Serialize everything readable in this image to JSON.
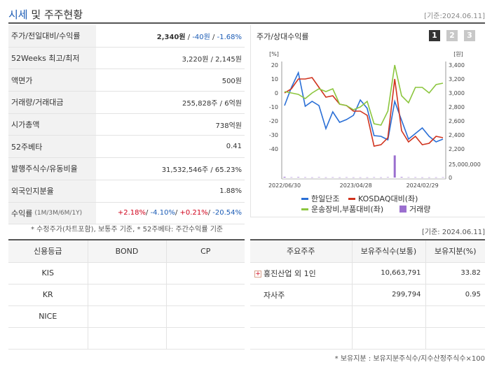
{
  "header": {
    "title_part1": "시세",
    "title_part2": " 및 주주현황",
    "date": "[기준:2024.06.11]"
  },
  "stock_info": {
    "price_row": {
      "label": "주가/전일대비/수익률",
      "price": "2,340원",
      "sep1": " / ",
      "change": "-40원",
      "sep2": " / ",
      "rate": "-1.68%"
    },
    "weeks52": {
      "label": "52Weeks 최고/최저",
      "value": "3,220원 / 2,145원"
    },
    "par": {
      "label": "액면가",
      "value": "500원"
    },
    "volume": {
      "label": "거래량/거래대금",
      "value": "255,828주 / 6억원"
    },
    "mcap": {
      "label": "시가총액",
      "value": "738억원"
    },
    "beta": {
      "label": "52주베타",
      "value": "0.41"
    },
    "shares": {
      "label": "발행주식수/유동비율",
      "value": "31,532,546주 / 65.23%"
    },
    "foreign": {
      "label": "외국인지분율",
      "value": "1.88%"
    },
    "returns": {
      "label": "수익률",
      "sub": "(1M/3M/6M/1Y)",
      "r1": "+2.18%",
      "r2": "-4.10%",
      "r3": "+0.21%",
      "r4": "-20.54%",
      "sep": "/ "
    }
  },
  "left_note": "* 수정주가(차트포함), 보통주 기준, * 52주베타: 주간수익률 기준",
  "chart": {
    "title": "주가/상대수익률",
    "pages": [
      "1",
      "2",
      "3"
    ],
    "legend": [
      {
        "name": "한일단조",
        "color": "#2a6fd6"
      },
      {
        "name": "KOSDAQ대비(좌)",
        "color": "#d0331e"
      },
      {
        "name": "운송장비,부품대비(좌)",
        "color": "#8cc63f"
      },
      {
        "name": "거래량",
        "color": "#9b6fcf"
      }
    ]
  },
  "chart_data": {
    "type": "line",
    "left_axis_unit": "[%]",
    "right_axis_unit": "[원]",
    "left_ticks": [
      "20",
      "10",
      "0",
      "-10",
      "-20",
      "-30",
      "-40"
    ],
    "right_ticks": [
      "3,400",
      "3,200",
      "3,000",
      "2,800",
      "2,600",
      "2,400",
      "2,200"
    ],
    "volume_ticks": [
      "25,000,000",
      "0"
    ],
    "x_labels": [
      "2022/06/30",
      "2023/04/28",
      "2024/02/29"
    ],
    "ylim_left": [
      -40,
      20
    ],
    "ylim_right": [
      2200,
      3400
    ],
    "volume_max": 25000000,
    "series": [
      {
        "name": "한일단조",
        "axis": "right",
        "values": [
          2820,
          3080,
          3290,
          2810,
          2880,
          2820,
          2490,
          2730,
          2580,
          2620,
          2680,
          2900,
          2780,
          2390,
          2380,
          2330,
          2880,
          2610,
          2340,
          2420,
          2500,
          2380,
          2300,
          2340
        ]
      },
      {
        "name": "KOSDAQ대비(좌)",
        "axis": "left",
        "values": [
          0,
          3,
          10,
          10,
          11,
          4,
          -3,
          -2,
          -8,
          -9,
          -13,
          -13,
          -16,
          -38,
          -37,
          -32,
          10,
          -27,
          -35,
          -31,
          -37,
          -36,
          -31,
          -32
        ]
      },
      {
        "name": "운송장비,부품대비(좌)",
        "axis": "left",
        "values": [
          1,
          0,
          -1,
          -4,
          0,
          3,
          1,
          3,
          -8,
          -9,
          -12,
          -10,
          -6,
          -22,
          -23,
          -13,
          20,
          -2,
          -7,
          4,
          4,
          0,
          6,
          7
        ]
      }
    ],
    "volume": [
      800000,
      300000,
      500000,
      300000,
      200000,
      400000,
      200000,
      300000,
      200000,
      300000,
      200000,
      200000,
      200000,
      300000,
      200000,
      400000,
      24000000,
      600000,
      300000,
      300000,
      200000,
      200000,
      200000,
      300000
    ]
  },
  "right_date": "[기준: 2024.06.11]",
  "credit": {
    "headers": [
      "신용등급",
      "BOND",
      "CP"
    ],
    "rows": [
      [
        "KIS",
        "",
        ""
      ],
      [
        "KR",
        "",
        ""
      ],
      [
        "NICE",
        "",
        ""
      ],
      [
        "",
        "",
        ""
      ]
    ]
  },
  "holders": {
    "headers": [
      "주요주주",
      "보유주식수(보통)",
      "보유지분(%)"
    ],
    "rows": [
      {
        "name": "홍진산업 외 1인",
        "shares": "10,663,791",
        "pct": "33.82",
        "expand": "+"
      },
      {
        "name": "자사주",
        "shares": "299,794",
        "pct": "0.95"
      },
      {
        "name": "",
        "shares": "",
        "pct": ""
      },
      {
        "name": "",
        "shares": "",
        "pct": ""
      }
    ]
  },
  "bottom_note": "* 보유지분 : 보유지분주식수/지수산정주식수×100"
}
